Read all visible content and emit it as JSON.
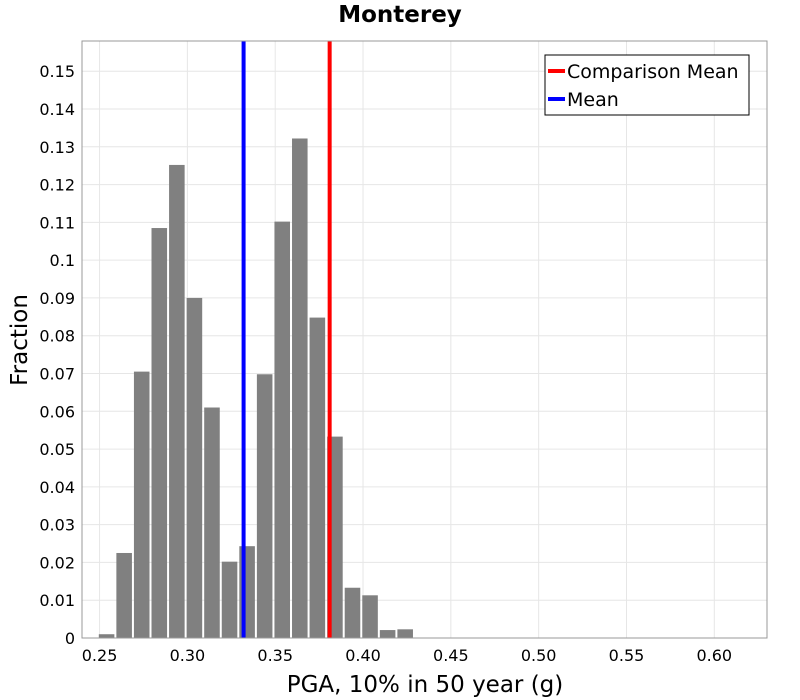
{
  "chart_data": {
    "type": "bar",
    "title": "Monterey",
    "xlabel": "PGA, 10% in 50 year (g)",
    "ylabel": "Fraction",
    "xlim": [
      0.24,
      0.63
    ],
    "ylim": [
      0,
      0.158
    ],
    "xticks": [
      "0.25",
      "0.30",
      "0.35",
      "0.40",
      "0.45",
      "0.50",
      "0.55",
      "0.60"
    ],
    "yticks": [
      "0",
      "0.01",
      "0.02",
      "0.03",
      "0.04",
      "0.05",
      "0.06",
      "0.07",
      "0.08",
      "0.09",
      "0.1",
      "0.11",
      "0.12",
      "0.13",
      "0.14",
      "0.15"
    ],
    "grid": true,
    "bin_width": 0.01,
    "bars_color": "#808080",
    "bins": [
      {
        "x": 0.254,
        "value": 0.001
      },
      {
        "x": 0.264,
        "value": 0.0225
      },
      {
        "x": 0.274,
        "value": 0.0705
      },
      {
        "x": 0.284,
        "value": 0.1085
      },
      {
        "x": 0.294,
        "value": 0.1252
      },
      {
        "x": 0.304,
        "value": 0.09
      },
      {
        "x": 0.314,
        "value": 0.061
      },
      {
        "x": 0.324,
        "value": 0.0202
      },
      {
        "x": 0.334,
        "value": 0.0243
      },
      {
        "x": 0.344,
        "value": 0.0698
      },
      {
        "x": 0.354,
        "value": 0.1102
      },
      {
        "x": 0.364,
        "value": 0.1322
      },
      {
        "x": 0.374,
        "value": 0.0848
      },
      {
        "x": 0.384,
        "value": 0.0533
      },
      {
        "x": 0.394,
        "value": 0.0133
      },
      {
        "x": 0.404,
        "value": 0.0113
      },
      {
        "x": 0.414,
        "value": 0.0021
      },
      {
        "x": 0.424,
        "value": 0.0023
      }
    ],
    "lines": [
      {
        "name": "Comparison Mean",
        "x": 0.381,
        "color": "#ff0000"
      },
      {
        "name": "Mean",
        "x": 0.332,
        "color": "#0000ff"
      }
    ],
    "legend": {
      "position": "top-right",
      "entries": [
        {
          "label": "Comparison Mean",
          "color": "#ff0000"
        },
        {
          "label": "Mean",
          "color": "#0000ff"
        }
      ]
    }
  }
}
